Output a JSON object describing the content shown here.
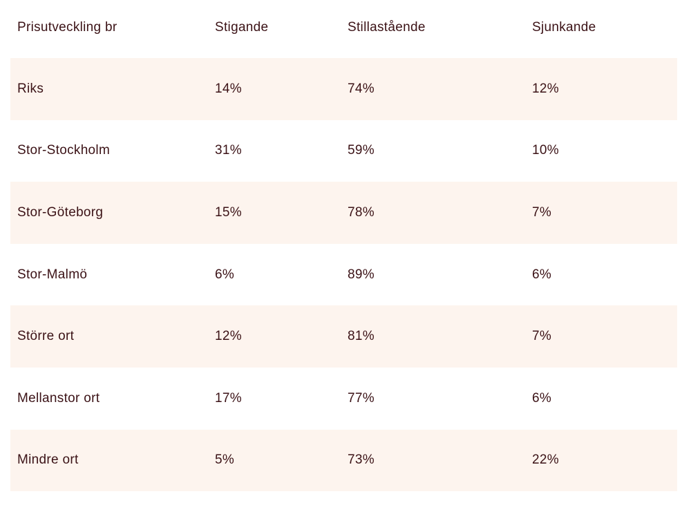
{
  "table": {
    "headers": [
      "Prisutveckling br",
      "Stigande",
      "Stillastående",
      "Sjunkande"
    ],
    "rows": [
      [
        "Riks",
        "14%",
        "74%",
        "12%"
      ],
      [
        "Stor-Stockholm",
        "31%",
        "59%",
        "10%"
      ],
      [
        "Stor-Göteborg",
        "15%",
        "78%",
        "7%"
      ],
      [
        "Stor-Malmö",
        "6%",
        "89%",
        "6%"
      ],
      [
        "Större ort",
        "12%",
        "81%",
        "7%"
      ],
      [
        "Mellanstor ort",
        "17%",
        "77%",
        "6%"
      ],
      [
        "Mindre ort",
        "5%",
        "73%",
        "22%"
      ]
    ]
  },
  "colors": {
    "text": "#3b1216",
    "row_shade": "#fdf4ee",
    "background": "#ffffff"
  }
}
